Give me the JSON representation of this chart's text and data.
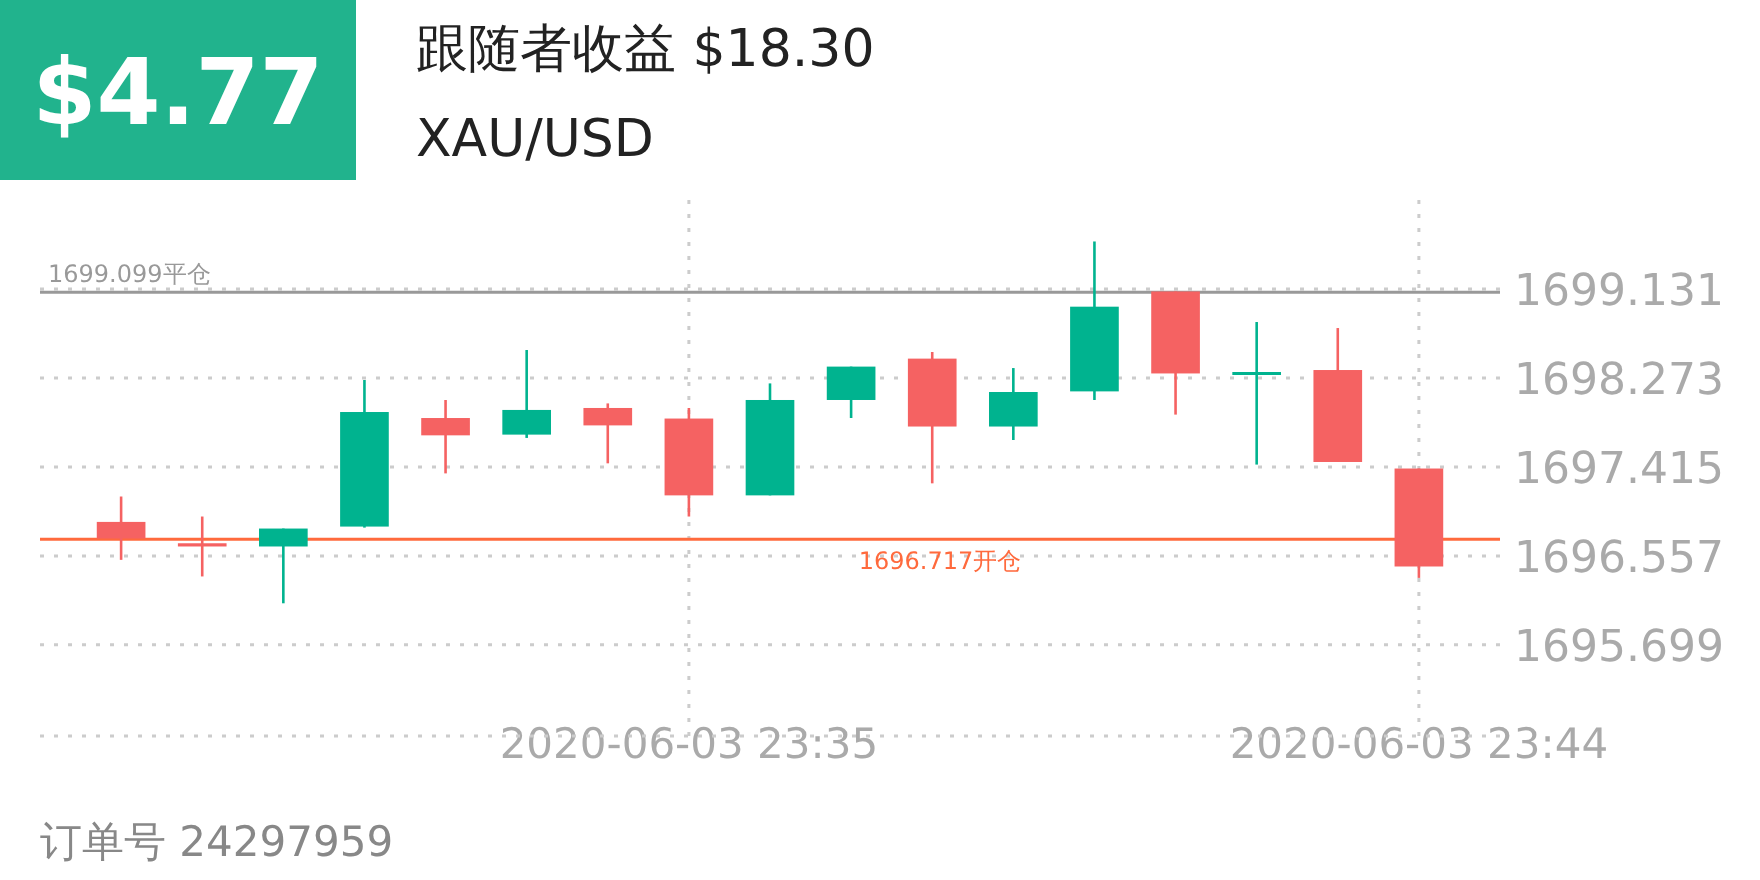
{
  "chart_data": {
    "type": "candlestick",
    "title": "跟随者收益 $18.30",
    "subtitle": "XAU/USD",
    "annotations": [
      "$4.77",
      "订单号 24297959"
    ],
    "x": [
      "2020-06-03T23:28",
      "2020-06-03T23:29",
      "2020-06-03T23:30",
      "2020-06-03T23:31",
      "2020-06-03T23:32",
      "2020-06-03T23:33",
      "2020-06-03T23:34",
      "2020-06-03T23:35",
      "2020-06-03T23:36",
      "2020-06-03T23:37",
      "2020-06-03T23:38",
      "2020-06-03T23:39",
      "2020-06-03T23:40",
      "2020-06-03T23:41",
      "2020-06-03T23:42",
      "2020-06-03T23:43",
      "2020-06-03T23:44"
    ],
    "ohlc": [
      [
        1696.885,
        1697.13,
        1696.519,
        1696.725
      ],
      [
        1696.679,
        1696.937,
        1696.359,
        1696.648
      ],
      [
        1696.648,
        1696.821,
        1696.1,
        1696.821
      ],
      [
        1696.84,
        1698.254,
        1696.83,
        1697.945
      ],
      [
        1697.887,
        1698.061,
        1697.353,
        1697.72
      ],
      [
        1697.727,
        1698.543,
        1697.695,
        1697.965
      ],
      [
        1697.984,
        1698.028,
        1697.45,
        1697.816
      ],
      [
        1697.882,
        1697.984,
        1696.937,
        1697.141
      ],
      [
        1697.141,
        1698.221,
        1697.141,
        1698.061
      ],
      [
        1698.061,
        1698.383,
        1697.887,
        1698.383
      ],
      [
        1698.46,
        1698.524,
        1697.257,
        1697.805
      ],
      [
        1697.805,
        1698.369,
        1697.675,
        1698.138
      ],
      [
        1698.144,
        1699.59,
        1698.061,
        1698.961
      ],
      [
        1699.108,
        1699.108,
        1697.92,
        1698.317
      ],
      [
        1698.331,
        1698.813,
        1697.438,
        1698.331
      ],
      [
        1698.35,
        1698.755,
        1697.463,
        1697.463
      ],
      [
        1697.4,
        1697.4,
        1696.345,
        1696.455
      ]
    ],
    "colors": [
      "#f56262",
      "#f56262",
      "#00b38f",
      "#00b38f",
      "#f56262",
      "#00b38f",
      "#f56262",
      "#f56262",
      "#00b38f",
      "#00b38f",
      "#f56262",
      "#00b38f",
      "#00b38f",
      "#f56262",
      "#00b38f",
      "#f56262",
      "#f56262"
    ],
    "xlim": [
      "2020-06-03T23:27",
      "2020-06-03T23:45"
    ],
    "xticks": [
      {
        "value": "2020-06-03T23:35",
        "label": "2020-06-03 23:35"
      },
      {
        "value": "2020-06-03T23:44",
        "label": "2020-06-03 23:44"
      }
    ],
    "ylim": [
      1694.82,
      1699.99
    ],
    "yticks": [
      1695.699,
      1696.557,
      1697.415,
      1698.273,
      1699.131
    ],
    "ref_lines": [
      {
        "axis": "y",
        "value": 1699.099,
        "label": "1699.099平仓",
        "color": "#999999"
      },
      {
        "axis": "y",
        "value": 1696.717,
        "label": "1696.717开仓",
        "color": "#ff6a3d"
      }
    ],
    "grid": true
  }
}
